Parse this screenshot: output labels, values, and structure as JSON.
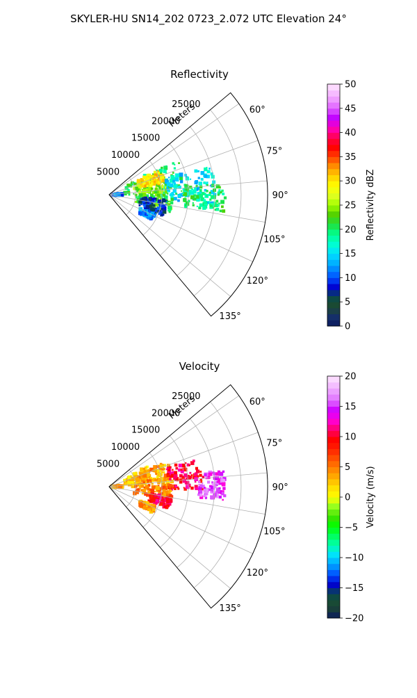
{
  "figure": {
    "suptitle": "SKYLER-HU  SN14_202  0723_2.072 UTC Elevation 24°"
  },
  "chart_data": [
    {
      "type": "heatmap",
      "plot": "polar-sector",
      "title": "Reflectivity",
      "range_label": "Meters",
      "range_ticks": [
        5000,
        10000,
        15000,
        20000,
        25000
      ],
      "range_max": 30000,
      "azimuth_ticks_deg": [
        60,
        75,
        90,
        105,
        120,
        135
      ],
      "azimuth_tick_labels": [
        "60°",
        "75°",
        "90°",
        "105°",
        "120°",
        "135°"
      ],
      "azimuth_range_deg": [
        50,
        140
      ],
      "grid": true,
      "colorbar": {
        "label": "Reflectivity dBZ",
        "ticks": [
          0,
          5,
          10,
          15,
          20,
          25,
          30,
          35,
          40,
          45,
          50
        ],
        "tick_labels": [
          "0",
          "5",
          "10",
          "15",
          "20",
          "25",
          "30",
          "35",
          "40",
          "45",
          "50"
        ],
        "range": [
          0,
          50
        ],
        "colormap": "pyart_NWSRef-like"
      },
      "echo_regions": [
        {
          "az": [
            62,
            90
          ],
          "r": [
            3000,
            15000
          ],
          "value": 20
        },
        {
          "az": [
            68,
            88
          ],
          "r": [
            5000,
            11000
          ],
          "value": 24
        },
        {
          "az": [
            64,
            78
          ],
          "r": [
            6000,
            11000
          ],
          "value": 30
        },
        {
          "az": [
            74,
            95
          ],
          "r": [
            11000,
            20000
          ],
          "value": 15
        },
        {
          "az": [
            84,
            99
          ],
          "r": [
            14000,
            22000
          ],
          "value": 20
        },
        {
          "az": [
            90,
            106
          ],
          "r": [
            5000,
            12000
          ],
          "value": 22
        },
        {
          "az": [
            95,
            112
          ],
          "r": [
            6000,
            11000
          ],
          "value": 8
        },
        {
          "az": [
            84,
            94
          ],
          "r": [
            500,
            2500
          ],
          "value": 11
        },
        {
          "az": [
            113,
            121
          ],
          "r": [
            6500,
            9500
          ],
          "value": 12
        }
      ]
    },
    {
      "type": "heatmap",
      "plot": "polar-sector",
      "title": "Velocity",
      "range_label": "Meters",
      "range_ticks": [
        5000,
        10000,
        15000,
        20000,
        25000
      ],
      "range_max": 30000,
      "azimuth_ticks_deg": [
        60,
        75,
        90,
        105,
        120,
        135
      ],
      "azimuth_tick_labels": [
        "60°",
        "75°",
        "90°",
        "105°",
        "120°",
        "135°"
      ],
      "azimuth_range_deg": [
        50,
        140
      ],
      "grid": true,
      "colorbar": {
        "label": "Velocity (m/s)",
        "ticks": [
          -20,
          -15,
          -10,
          -5,
          0,
          5,
          10,
          15,
          20
        ],
        "tick_labels": [
          "−20",
          "−15",
          "−10",
          "−5",
          "0",
          "5",
          "10",
          "15",
          "20"
        ],
        "range": [
          -20,
          20
        ],
        "colormap": "pyart_BuDRd-like"
      },
      "echo_regions": [
        {
          "az": [
            62,
            90
          ],
          "r": [
            3000,
            12000
          ],
          "value": 2
        },
        {
          "az": [
            66,
            86
          ],
          "r": [
            5000,
            11000
          ],
          "value": 4
        },
        {
          "az": [
            72,
            92
          ],
          "r": [
            11000,
            18000
          ],
          "value": 10
        },
        {
          "az": [
            82,
            97
          ],
          "r": [
            17000,
            22000
          ],
          "value": 15
        },
        {
          "az": [
            88,
            105
          ],
          "r": [
            5000,
            12000
          ],
          "value": 5
        },
        {
          "az": [
            100,
            110
          ],
          "r": [
            8000,
            12000
          ],
          "value": 10
        },
        {
          "az": [
            84,
            94
          ],
          "r": [
            500,
            2500
          ],
          "value": 3
        },
        {
          "az": [
            113,
            121
          ],
          "r": [
            6500,
            9500
          ],
          "value": 4
        }
      ]
    }
  ]
}
